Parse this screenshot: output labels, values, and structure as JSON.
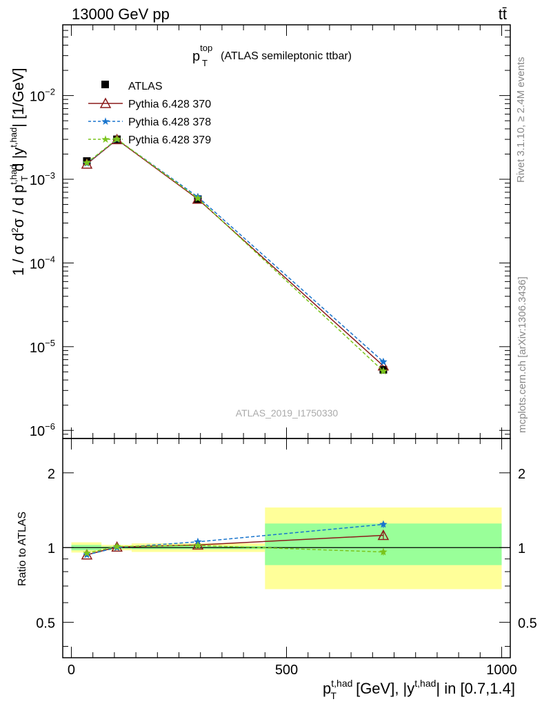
{
  "header": {
    "energy": "13000 GeV pp",
    "process": "tt̄"
  },
  "side_labels": {
    "rivet": "Rivet 3.1.10, ≥ 2.4M events",
    "mcplots": "mcplots.cern.ch [arXiv:1306.3436]"
  },
  "chart_data": [
    {
      "type": "scatter",
      "title_main": "p",
      "title_sup": "top",
      "title_sub": "T",
      "title_rest": "(ATLAS semileptonic ttbar)",
      "ylabel": "1 / σ d²σ / d p_T^{t,had} d |y^{t,had}| [1/GeV]",
      "watermark": "ATLAS_2019_I1750330",
      "yscale": "log",
      "xlim": [
        -20,
        1020
      ],
      "ylim": [
        8e-07,
        0.07
      ],
      "ytick_labels": [
        {
          "base": "10",
          "exp": "−2",
          "value": 0.01
        },
        {
          "base": "10",
          "exp": "−3",
          "value": 0.001
        },
        {
          "base": "10",
          "exp": "−4",
          "value": 0.0001
        },
        {
          "base": "10",
          "exp": "−5",
          "value": 1e-05
        },
        {
          "base": "10",
          "exp": "−6",
          "value": 1e-06
        }
      ],
      "legend_position": "top-left",
      "series": [
        {
          "name": "ATLAS",
          "color": "#000000",
          "marker": "square",
          "x": [
            36,
            106,
            294,
            725
          ],
          "y": [
            0.00165,
            0.003,
            0.00058,
            5.3e-06
          ]
        },
        {
          "name": "Pythia 6.428 370",
          "color": "#8b1a1a",
          "marker": "triangle",
          "line": "solid",
          "x": [
            36,
            106,
            294,
            725
          ],
          "y": [
            0.00152,
            0.00298,
            0.00058,
            5.9e-06
          ]
        },
        {
          "name": "Pythia 6.428 378",
          "color": "#1874cd",
          "marker": "star",
          "line": "dashed",
          "x": [
            36,
            106,
            294,
            725
          ],
          "y": [
            0.00155,
            0.003,
            0.000615,
            6.6e-06
          ]
        },
        {
          "name": "Pythia 6.428 379",
          "color": "#7ac41c",
          "marker": "star",
          "line": "dashed",
          "x": [
            36,
            106,
            294,
            725
          ],
          "y": [
            0.00157,
            0.00302,
            0.000592,
            5.1e-06
          ]
        }
      ]
    },
    {
      "type": "scatter",
      "ylabel": "Ratio to ATLAS",
      "yscale": "log",
      "xlim": [
        -20,
        1020
      ],
      "ylim": [
        0.36,
        2.75
      ],
      "ref_line": 1,
      "ytick_labels": [
        {
          "label": "2",
          "value": 2
        },
        {
          "label": "1",
          "value": 1
        },
        {
          "label": "0.5",
          "value": 0.5
        }
      ],
      "xtick_labels": [
        {
          "label": "0",
          "value": 0
        },
        {
          "label": "500",
          "value": 500
        },
        {
          "label": "1000",
          "value": 1000
        }
      ],
      "xlabel": "p_T^{t,had} [GeV], |y^{t,had}| in [0.7,1.4]",
      "uncertainty_bands": [
        {
          "x0": 0,
          "x1": 70,
          "total": [
            0.955,
            1.05
          ],
          "stat": [
            0.975,
            1.025
          ]
        },
        {
          "x0": 70,
          "x1": 140,
          "total": [
            0.975,
            1.025
          ],
          "stat": [
            0.99,
            1.01
          ]
        },
        {
          "x0": 140,
          "x1": 450,
          "total": [
            0.96,
            1.04
          ],
          "stat": [
            0.985,
            1.015
          ]
        },
        {
          "x0": 450,
          "x1": 1000,
          "total": [
            0.68,
            1.45
          ],
          "stat": [
            0.85,
            1.25
          ]
        }
      ],
      "series": [
        {
          "name": "Pythia 6.428 370",
          "color": "#8b1a1a",
          "x": [
            36,
            106,
            294,
            725
          ],
          "y": [
            0.935,
            1.005,
            1.025,
            1.12
          ],
          "yerr": [
            0.01,
            0.01,
            0.01,
            0.04
          ]
        },
        {
          "name": "Pythia 6.428 378",
          "color": "#1874cd",
          "x": [
            36,
            106,
            294,
            725
          ],
          "y": [
            0.935,
            1.0,
            1.055,
            1.24
          ],
          "yerr": [
            0.01,
            0.01,
            0.01,
            0.04
          ]
        },
        {
          "name": "Pythia 6.428 379",
          "color": "#7ac41c",
          "x": [
            36,
            106,
            294,
            725
          ],
          "y": [
            0.95,
            1.01,
            1.02,
            0.96
          ],
          "yerr": [
            0.01,
            0.01,
            0.01,
            0.03
          ]
        }
      ]
    }
  ],
  "colors": {
    "band_total": "#ffff99",
    "band_stat": "#99ff99"
  }
}
